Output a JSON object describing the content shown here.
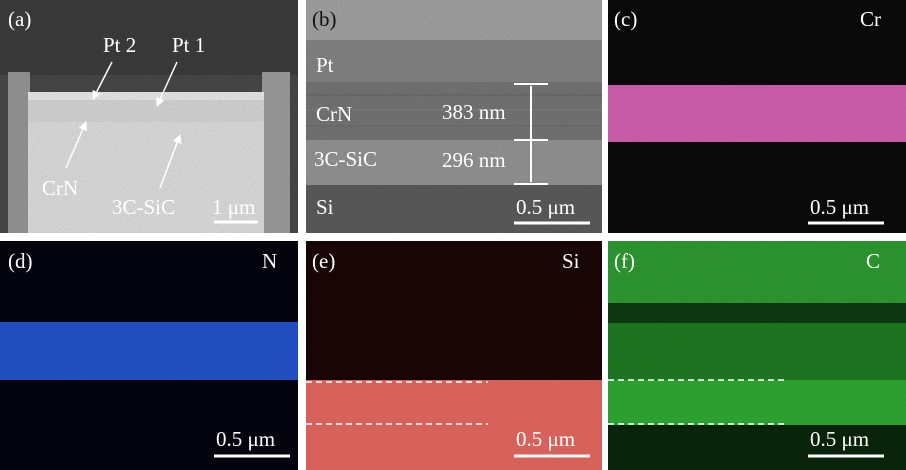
{
  "panels": [
    {
      "label": "(a)",
      "annotations": [
        "Pt 2",
        "Pt 1",
        "CrN",
        "3C-SiC"
      ],
      "scale_bar": "1 μm"
    },
    {
      "label": "(b)",
      "layers": [
        "Pt",
        "CrN",
        "3C-SiC",
        "Si"
      ],
      "measurements": [
        "383 nm",
        "296 nm"
      ],
      "scale_bar": "0.5 μm"
    },
    {
      "label": "(c)",
      "element": "Cr",
      "scale_bar": "0.5 μm"
    },
    {
      "label": "(d)",
      "element": "N",
      "scale_bar": "0.5 μm"
    },
    {
      "label": "(e)",
      "element": "Si",
      "scale_bar": "0.5 μm"
    },
    {
      "label": "(f)",
      "element": "C",
      "scale_bar": "0.5 μm"
    }
  ]
}
